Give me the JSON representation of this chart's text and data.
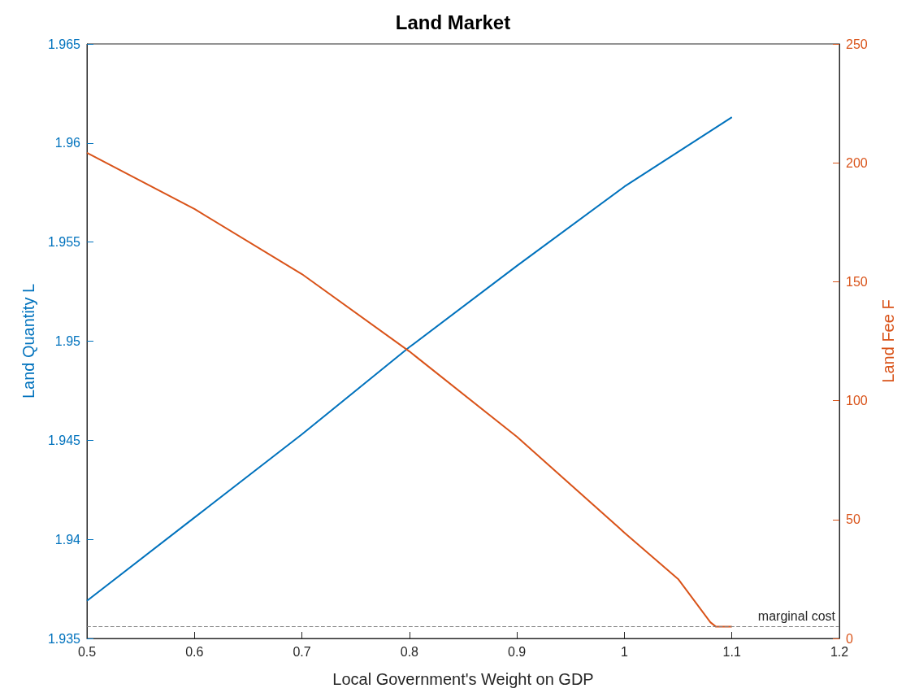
{
  "chart_data": {
    "type": "line",
    "title": "Land Market",
    "xlabel": "Local Government's Weight on GDP",
    "ylabel": "Land Quantity L",
    "y2label": "Land Fee F",
    "series": [
      {
        "name": null,
        "color": "#0072bd",
        "x": [
          0.5,
          0.6,
          0.7,
          0.8,
          0.9,
          1.0,
          1.1
        ],
        "values": [
          1.9369,
          1.9411,
          1.9453,
          1.9497,
          1.9538,
          1.9578,
          1.9613
        ]
      },
      {
        "name": null,
        "color": "#d95319",
        "axis": "y2",
        "x": [
          0.5,
          0.6,
          0.7,
          0.8,
          0.9,
          1.0,
          1.05,
          1.08,
          1.085,
          1.1
        ],
        "values": [
          204.2,
          180.6,
          153.2,
          120.7,
          84.8,
          44.5,
          25.0,
          6.8,
          5,
          5
        ]
      }
    ],
    "xlim": [
      0.5,
      1.2
    ],
    "xticks": [
      0.5,
      0.6,
      0.7,
      0.8,
      0.9,
      1,
      1.1,
      1.2
    ],
    "ylim": [
      1.935,
      1.965
    ],
    "yticks": [
      1.935,
      1.94,
      1.945,
      1.95,
      1.955,
      1.96,
      1.965
    ],
    "y2lim": [
      0,
      250
    ],
    "y2ticks": [
      0,
      50,
      100,
      150,
      200,
      250
    ],
    "ref_lines": [
      {
        "axis": "y2",
        "value": 5,
        "label": "marginal cost",
        "color": "#808080",
        "line_style": "dashed"
      }
    ],
    "grid": false,
    "marker": "none",
    "line_style": "solid"
  }
}
